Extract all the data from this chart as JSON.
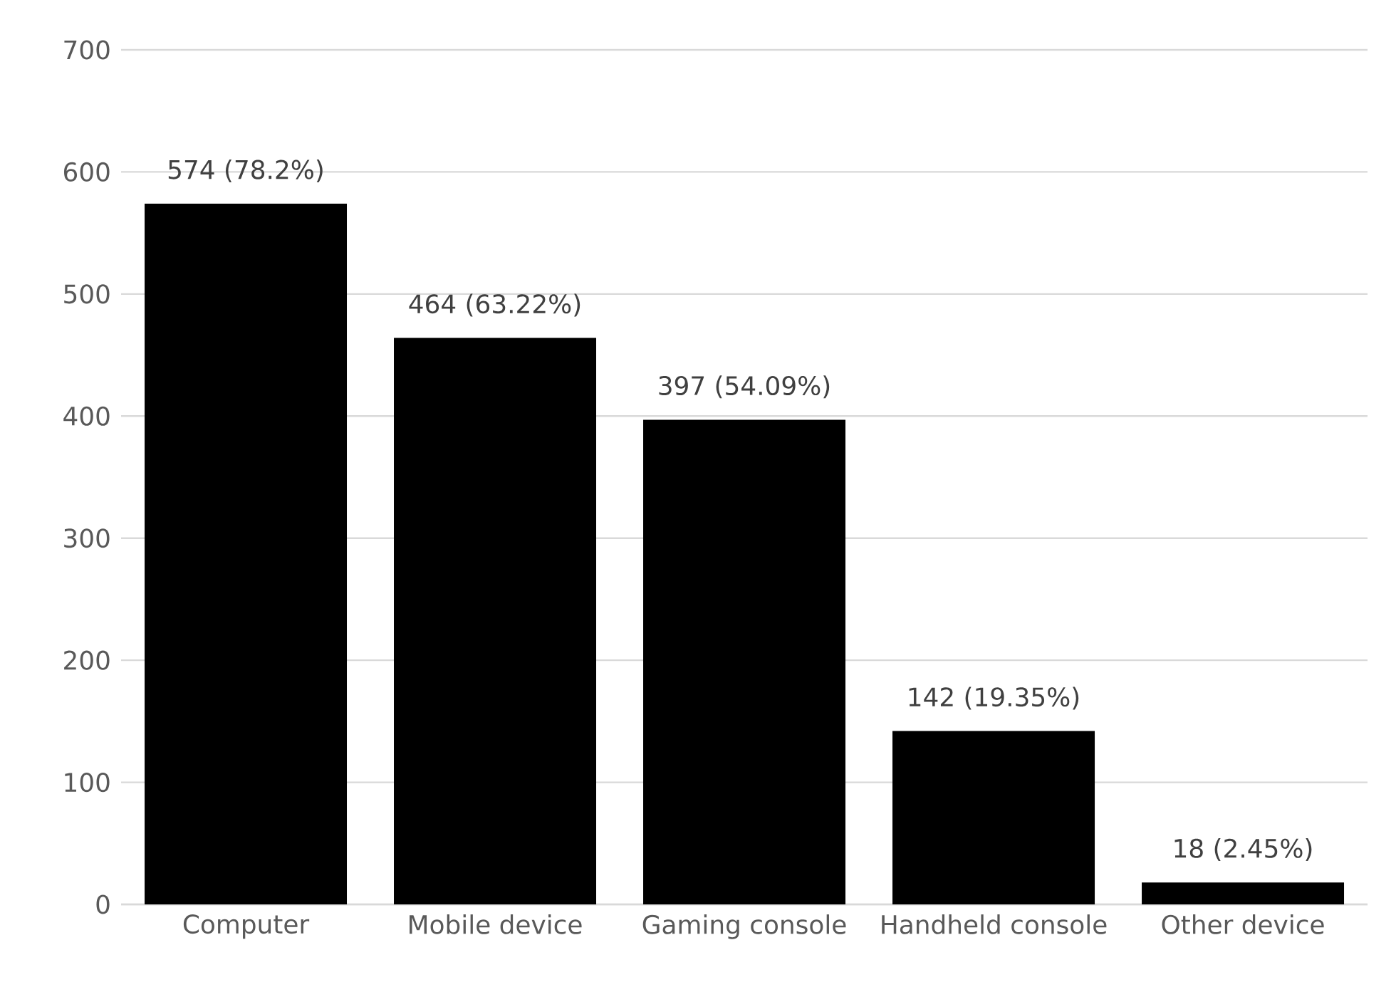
{
  "chart_data": {
    "type": "bar",
    "categories": [
      "Computer",
      "Mobile device",
      "Gaming console",
      "Handheld console",
      "Other device"
    ],
    "values": [
      574,
      464,
      397,
      142,
      18
    ],
    "value_labels": [
      "574 (78.2%)",
      "464 (63.22%)",
      "397 (54.09%)",
      "142 (19.35%)",
      "18 (2.45%)"
    ],
    "color": "#000000",
    "ylim": [
      0,
      700
    ],
    "yticks": [
      0,
      100,
      200,
      300,
      400,
      500,
      600,
      700
    ],
    "grid": "y"
  }
}
